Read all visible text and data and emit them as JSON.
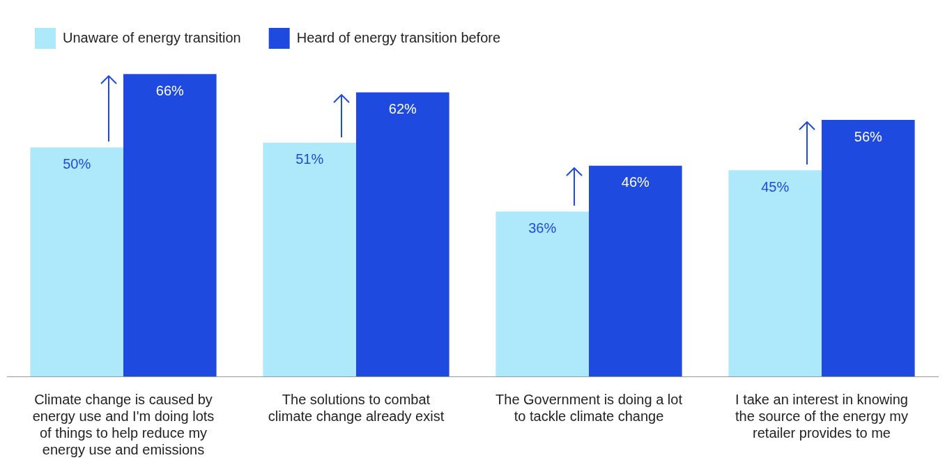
{
  "chart_data": {
    "type": "bar",
    "categories": [
      "Climate change is caused by energy use and I'm doing lots of things to help reduce my energy use and emissions",
      "The solutions to combat climate change already exist",
      "The Government is doing a lot to tackle climate change",
      "I take an interest in knowing the source of the energy my retailer provides to me"
    ],
    "series": [
      {
        "name": "Unaware of energy transition",
        "color": "#aee8fb",
        "values": [
          50,
          51,
          36,
          45
        ],
        "value_labels": [
          "50%",
          "51%",
          "36%",
          "45%"
        ]
      },
      {
        "name": "Heard of energy transition before",
        "color": "#1f4ae0",
        "values": [
          66,
          62,
          46,
          56
        ],
        "value_labels": [
          "66%",
          "62%",
          "46%",
          "56%"
        ]
      }
    ],
    "legend": "top left"
  }
}
